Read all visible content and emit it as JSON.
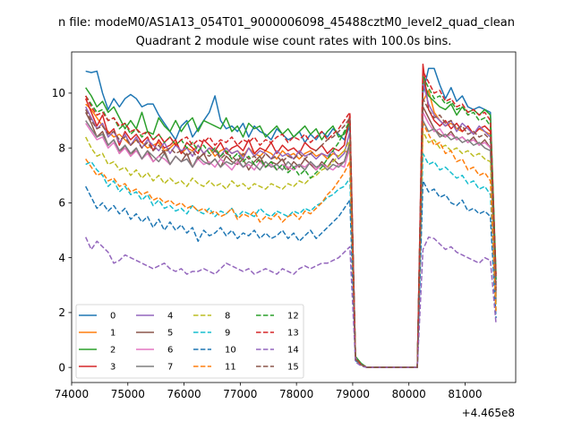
{
  "figure": {
    "suptitle": "n file: modeM0/AS1A13_054T01_9000006098_45488cztM0_level2_quad_clean",
    "offset_text": "+4.465e8"
  },
  "chart_data": {
    "type": "line",
    "title": "Quadrant 2 module wise count rates with 100.0s bins.",
    "xlabel": "",
    "ylabel": "",
    "x_offset": 446500000,
    "xlim": [
      74000,
      81900
    ],
    "ylim": [
      -0.55,
      11.5
    ],
    "xticks": [
      74000,
      75000,
      76000,
      77000,
      78000,
      79000,
      80000,
      81000
    ],
    "xtick_labels": [
      "74000",
      "75000",
      "76000",
      "77000",
      "78000",
      "79000",
      "80000",
      "81000"
    ],
    "yticks": [
      0,
      2,
      4,
      6,
      8,
      10
    ],
    "ytick_labels": [
      "0",
      "2",
      "4",
      "6",
      "8",
      "10"
    ],
    "grid": false,
    "legend": {
      "placement": "lower-left",
      "columns": 4
    },
    "segments": [
      {
        "x_start": 74250,
        "x_end": 78950,
        "step": 100
      },
      {
        "x_start": 79050,
        "x_end": 79150,
        "step": 100
      },
      {
        "x_start": 79250,
        "x_end": 80150,
        "step": 100
      },
      {
        "x_start": 80250,
        "x_end": 81450,
        "step": 100
      },
      {
        "x_start": 81550,
        "x_end": 81550,
        "step": 100
      }
    ],
    "series": [
      {
        "name": "0",
        "color": "#1f77b4",
        "dash": "solid",
        "phase1": [
          10.8,
          10.75,
          10.8,
          10.0,
          9.4,
          9.8,
          9.5,
          9.8,
          9.95,
          9.8,
          9.5,
          9.6,
          9.6,
          9.2,
          8.9,
          8.6,
          8.3,
          8.8,
          9.0,
          8.4,
          8.7,
          9.0,
          9.3,
          9.9,
          9.0,
          8.7,
          8.8,
          8.6,
          8.9,
          8.4,
          8.8,
          8.6,
          8.5,
          8.3,
          8.7,
          8.5,
          8.3,
          8.4,
          8.6,
          8.2,
          8.5,
          8.3,
          8.6,
          8.4,
          8.7,
          8.5,
          8.3,
          8.8
        ],
        "transition": [
          0.35,
          0.15
        ],
        "phase2": [
          10.0,
          10.9,
          10.9,
          10.3,
          9.8,
          10.2,
          9.7,
          9.9,
          9.5,
          9.4,
          9.5,
          9.4,
          9.3
        ],
        "end": 3.2
      },
      {
        "name": "1",
        "color": "#ff7f0e",
        "dash": "solid",
        "phase1": [
          9.6,
          9.4,
          9.1,
          8.8,
          8.6,
          8.4,
          8.5,
          8.3,
          8.1,
          8.3,
          8.2,
          8.0,
          8.1,
          8.2,
          7.9,
          8.0,
          8.2,
          7.8,
          8.0,
          7.9,
          8.1,
          7.8,
          8.0,
          7.7,
          7.9,
          8.0,
          7.8,
          7.9,
          7.7,
          8.0,
          7.8,
          7.7,
          7.9,
          7.8,
          7.6,
          7.9,
          7.7,
          7.8,
          7.6,
          7.8,
          7.9,
          7.7,
          7.8,
          7.6,
          7.8,
          7.7,
          7.9,
          7.8
        ],
        "transition": [
          0.3,
          0.1
        ],
        "phase2": [
          9.7,
          10.1,
          9.3,
          9.0,
          8.8,
          8.9,
          8.7,
          8.6,
          8.8,
          8.5,
          8.7,
          8.6,
          8.5
        ],
        "end": 2.7
      },
      {
        "name": "2",
        "color": "#2ca02c",
        "dash": "solid",
        "phase1": [
          10.2,
          9.9,
          9.5,
          9.7,
          9.3,
          9.5,
          9.1,
          8.7,
          9.0,
          8.7,
          9.3,
          8.6,
          8.5,
          9.1,
          8.8,
          8.6,
          9.0,
          8.6,
          8.9,
          9.1,
          8.6,
          9.0,
          8.9,
          8.8,
          8.7,
          9.1,
          8.6,
          8.8,
          8.4,
          8.9,
          8.7,
          8.8,
          8.4,
          8.6,
          8.8,
          8.5,
          8.7,
          8.4,
          8.6,
          8.8,
          8.5,
          8.7,
          8.3,
          8.6,
          8.8,
          8.4,
          8.5,
          8.9
        ],
        "transition": [
          0.4,
          0.15
        ],
        "phase2": [
          10.5,
          9.9,
          9.7,
          9.5,
          9.4,
          9.6,
          9.2,
          9.5,
          9.3,
          9.4,
          9.2,
          9.4,
          9.2
        ],
        "end": 3.4
      },
      {
        "name": "3",
        "color": "#d62728",
        "dash": "solid",
        "phase1": [
          9.8,
          9.3,
          8.8,
          9.2,
          8.5,
          8.7,
          8.1,
          8.6,
          8.3,
          8.5,
          8.2,
          8.4,
          7.9,
          8.3,
          8.0,
          8.1,
          8.3,
          7.8,
          8.2,
          8.0,
          7.8,
          8.3,
          8.1,
          7.9,
          8.2,
          7.8,
          8.0,
          8.1,
          7.9,
          8.3,
          7.8,
          8.0,
          7.9,
          8.2,
          7.8,
          8.1,
          7.9,
          8.0,
          7.8,
          8.2,
          8.0,
          7.9,
          8.1,
          7.8,
          8.0,
          7.9,
          8.1,
          9.2
        ],
        "transition": [
          0.3,
          0.1
        ],
        "phase2": [
          11.05,
          9.4,
          9.0,
          8.8,
          9.0,
          8.7,
          8.9,
          8.6,
          8.8,
          8.5,
          8.7,
          8.8,
          8.6
        ],
        "end": 2.9
      },
      {
        "name": "4",
        "color": "#9467bd",
        "dash": "solid",
        "phase1": [
          9.5,
          9.1,
          8.7,
          8.9,
          8.4,
          8.6,
          8.2,
          8.5,
          8.1,
          8.4,
          8.0,
          8.3,
          8.1,
          7.9,
          8.2,
          7.8,
          8.1,
          7.9,
          8.0,
          7.7,
          8.1,
          7.8,
          8.0,
          7.9,
          7.7,
          8.0,
          7.8,
          7.9,
          7.6,
          8.0,
          7.7,
          7.9,
          7.8,
          7.6,
          7.9,
          7.7,
          7.8,
          7.6,
          7.9,
          7.7,
          7.8,
          7.6,
          7.8,
          7.7,
          7.9,
          7.6,
          7.8,
          8.6
        ],
        "transition": [
          0.35,
          0.1
        ],
        "phase2": [
          10.4,
          9.6,
          9.2,
          9.0,
          8.8,
          9.0,
          8.6,
          8.9,
          8.7,
          8.5,
          8.8,
          8.6,
          8.4
        ],
        "end": 3.0
      },
      {
        "name": "5",
        "color": "#8c564b",
        "dash": "solid",
        "phase1": [
          9.3,
          8.9,
          8.4,
          8.6,
          8.1,
          8.3,
          7.8,
          8.1,
          7.7,
          8.0,
          7.6,
          7.9,
          7.5,
          7.7,
          7.9,
          7.4,
          7.7,
          7.5,
          7.8,
          7.3,
          7.6,
          7.8,
          7.4,
          7.6,
          7.3,
          7.7,
          7.5,
          7.4,
          7.6,
          7.2,
          7.5,
          7.7,
          7.3,
          7.5,
          7.4,
          7.6,
          7.2,
          7.5,
          7.3,
          7.6,
          7.4,
          7.2,
          7.5,
          7.3,
          7.6,
          7.4,
          7.5,
          8.2
        ],
        "transition": [
          0.3,
          0.1
        ],
        "phase2": [
          9.5,
          9.1,
          8.7,
          8.5,
          8.4,
          8.6,
          8.3,
          8.4,
          8.2,
          8.4,
          8.1,
          8.3,
          8.0
        ],
        "end": 2.6
      },
      {
        "name": "6",
        "color": "#e377c2",
        "dash": "solid",
        "phase1": [
          8.9,
          8.6,
          8.3,
          8.4,
          8.0,
          8.2,
          7.8,
          8.0,
          7.7,
          7.9,
          7.6,
          7.8,
          7.5,
          7.7,
          7.6,
          7.4,
          7.7,
          7.5,
          7.6,
          7.3,
          7.6,
          7.4,
          7.5,
          7.3,
          7.6,
          7.4,
          7.2,
          7.5,
          7.3,
          7.4,
          7.2,
          7.5,
          7.3,
          7.4,
          7.2,
          7.4,
          7.3,
          7.2,
          7.4,
          7.3,
          7.5,
          7.2,
          7.4,
          7.3,
          7.2,
          7.4,
          7.3,
          8.0
        ],
        "transition": [
          0.3,
          0.1
        ],
        "phase2": [
          9.3,
          8.9,
          8.6,
          8.7,
          8.4,
          8.5,
          8.3,
          8.4,
          8.2,
          8.3,
          8.1,
          8.2,
          8.0
        ],
        "end": 2.5
      },
      {
        "name": "7",
        "color": "#7f7f7f",
        "dash": "solid",
        "phase1": [
          9.0,
          8.7,
          8.4,
          8.5,
          8.1,
          8.3,
          7.9,
          8.1,
          7.8,
          8.0,
          7.6,
          7.9,
          7.7,
          7.5,
          7.8,
          7.4,
          7.7,
          7.5,
          7.6,
          7.3,
          7.7,
          7.5,
          7.4,
          7.6,
          7.3,
          7.5,
          7.4,
          7.6,
          7.3,
          7.5,
          7.4,
          7.2,
          7.5,
          7.3,
          7.4,
          7.2,
          7.5,
          7.3,
          7.4,
          7.2,
          7.5,
          7.3,
          7.4,
          7.2,
          7.4,
          7.3,
          7.5,
          8.1
        ],
        "transition": [
          0.3,
          0.1
        ],
        "phase2": [
          9.0,
          8.6,
          8.7,
          8.4,
          8.5,
          8.3,
          8.4,
          8.2,
          8.3,
          8.1,
          8.2,
          8.0,
          7.9
        ],
        "end": 2.4
      },
      {
        "name": "8",
        "color": "#bcbd22",
        "dash": "dashed",
        "phase1": [
          8.4,
          8.0,
          7.7,
          7.8,
          7.4,
          7.5,
          7.2,
          7.3,
          7.0,
          7.2,
          6.9,
          7.1,
          6.8,
          7.0,
          6.7,
          6.9,
          6.7,
          6.8,
          6.6,
          6.9,
          6.7,
          6.6,
          6.8,
          6.6,
          6.7,
          6.5,
          6.8,
          6.6,
          6.7,
          6.5,
          6.7,
          6.6,
          6.5,
          6.7,
          6.6,
          6.5,
          6.7,
          6.6,
          6.8,
          6.7,
          6.9,
          7.0,
          7.2,
          7.3,
          7.5,
          7.7,
          7.9,
          8.3
        ],
        "transition": [
          0.3,
          0.1
        ],
        "phase2": [
          8.6,
          8.2,
          8.3,
          8.0,
          8.1,
          7.9,
          8.0,
          7.8,
          7.9,
          7.7,
          7.8,
          7.6,
          7.5
        ],
        "end": 2.3
      },
      {
        "name": "9",
        "color": "#17becf",
        "dash": "dashed",
        "phase1": [
          7.4,
          7.5,
          7.2,
          7.0,
          6.6,
          6.8,
          6.4,
          6.6,
          6.3,
          6.4,
          6.1,
          6.3,
          5.9,
          6.1,
          5.8,
          5.9,
          5.7,
          5.8,
          5.6,
          5.9,
          5.7,
          5.6,
          5.8,
          5.5,
          5.7,
          5.6,
          5.8,
          5.5,
          5.7,
          5.6,
          5.5,
          5.8,
          5.6,
          5.5,
          5.7,
          5.6,
          5.5,
          5.7,
          5.6,
          5.8,
          5.7,
          5.9,
          6.0,
          6.2,
          6.3,
          6.5,
          6.6,
          6.9
        ],
        "transition": [
          0.25,
          0.1
        ],
        "phase2": [
          7.8,
          7.4,
          7.5,
          7.2,
          7.3,
          7.1,
          6.9,
          7.0,
          6.7,
          6.8,
          6.5,
          6.6,
          6.3
        ],
        "end": 2.1
      },
      {
        "name": "10",
        "color": "#1f77b4",
        "dash": "dashed",
        "phase1": [
          6.6,
          6.2,
          5.8,
          6.0,
          5.7,
          5.9,
          5.6,
          5.8,
          5.4,
          5.6,
          5.3,
          5.5,
          5.1,
          5.4,
          5.0,
          5.3,
          5.0,
          5.2,
          4.9,
          5.1,
          4.6,
          5.0,
          4.8,
          4.9,
          5.1,
          4.8,
          5.0,
          4.7,
          4.9,
          4.8,
          5.0,
          4.7,
          4.9,
          4.7,
          4.8,
          5.0,
          4.7,
          4.9,
          4.6,
          4.8,
          5.0,
          4.7,
          4.9,
          5.1,
          5.3,
          5.5,
          5.8,
          6.1
        ],
        "transition": [
          0.25,
          0.1
        ],
        "phase2": [
          6.8,
          6.4,
          6.5,
          6.2,
          6.3,
          6.0,
          5.9,
          6.1,
          5.7,
          5.8,
          5.6,
          5.7,
          5.5
        ],
        "end": 1.8
      },
      {
        "name": "11",
        "color": "#ff7f0e",
        "dash": "dashed",
        "phase1": [
          7.6,
          7.3,
          7.0,
          7.1,
          6.8,
          6.9,
          6.6,
          6.7,
          6.4,
          6.5,
          6.3,
          6.4,
          6.1,
          6.2,
          6.0,
          6.1,
          5.9,
          6.0,
          5.8,
          5.9,
          5.7,
          5.8,
          5.6,
          5.7,
          5.5,
          5.6,
          5.8,
          5.4,
          5.6,
          5.5,
          5.7,
          5.3,
          5.5,
          5.4,
          5.6,
          5.3,
          5.5,
          5.6,
          5.4,
          5.7,
          5.6,
          5.8,
          6.0,
          6.3,
          6.5,
          6.8,
          7.1,
          7.5
        ],
        "transition": [
          0.3,
          0.1
        ],
        "phase2": [
          8.9,
          8.5,
          8.1,
          8.2,
          7.8,
          7.9,
          7.5,
          7.6,
          7.2,
          7.3,
          7.0,
          7.1,
          6.8
        ],
        "end": 2.0
      },
      {
        "name": "12",
        "color": "#2ca02c",
        "dash": "dashed",
        "phase1": [
          9.9,
          9.6,
          9.3,
          9.4,
          9.0,
          9.1,
          8.7,
          8.9,
          8.5,
          8.7,
          8.4,
          8.6,
          8.3,
          8.5,
          8.2,
          8.4,
          8.1,
          8.3,
          8.0,
          8.2,
          7.9,
          8.1,
          7.8,
          8.0,
          7.7,
          7.9,
          7.6,
          7.8,
          7.5,
          7.7,
          7.4,
          7.6,
          7.3,
          7.5,
          7.2,
          7.4,
          7.1,
          7.3,
          7.0,
          7.2,
          6.9,
          7.1,
          7.3,
          7.6,
          7.9,
          8.2,
          8.6,
          9.0
        ],
        "transition": [
          0.35,
          0.1
        ],
        "phase2": [
          10.6,
          10.2,
          9.8,
          9.9,
          9.6,
          9.7,
          9.4,
          9.5,
          9.2,
          9.3,
          9.0,
          9.1,
          8.8
        ],
        "end": 3.1
      },
      {
        "name": "13",
        "color": "#d62728",
        "dash": "dashed",
        "phase1": [
          9.9,
          9.5,
          9.2,
          9.3,
          9.0,
          9.1,
          8.8,
          8.9,
          8.6,
          8.7,
          8.5,
          8.6,
          8.3,
          8.5,
          8.2,
          8.4,
          8.1,
          8.3,
          8.4,
          8.1,
          8.3,
          8.2,
          8.4,
          8.1,
          8.3,
          8.2,
          8.4,
          8.1,
          8.3,
          8.2,
          8.4,
          8.1,
          8.3,
          8.2,
          8.4,
          8.5,
          8.2,
          8.4,
          8.3,
          8.5,
          8.2,
          8.4,
          8.6,
          8.3,
          8.5,
          8.7,
          9.0,
          9.3
        ],
        "transition": [
          0.35,
          0.1
        ],
        "phase2": [
          10.8,
          10.4,
          10.0,
          10.1,
          9.7,
          9.8,
          9.5,
          9.6,
          9.3,
          9.4,
          9.2,
          9.3,
          9.0
        ],
        "end": 3.3
      },
      {
        "name": "14",
        "color": "#9467bd",
        "dash": "dashed",
        "phase1": [
          4.75,
          4.3,
          4.6,
          4.4,
          4.2,
          3.8,
          3.9,
          4.1,
          4.0,
          3.9,
          3.8,
          3.7,
          3.6,
          3.7,
          3.8,
          3.6,
          3.5,
          3.6,
          3.4,
          3.5,
          3.5,
          3.6,
          3.5,
          3.4,
          3.6,
          3.8,
          3.7,
          3.6,
          3.5,
          3.6,
          3.4,
          3.5,
          3.6,
          3.5,
          3.4,
          3.6,
          3.5,
          3.4,
          3.6,
          3.7,
          3.6,
          3.7,
          3.8,
          3.8,
          3.9,
          4.0,
          4.2,
          4.4
        ],
        "transition": [
          0.2,
          0.05
        ],
        "phase2": [
          4.3,
          4.75,
          4.7,
          4.5,
          4.3,
          4.4,
          4.2,
          4.1,
          4.0,
          3.9,
          3.8,
          4.0,
          3.9
        ],
        "end": 1.6
      },
      {
        "name": "15",
        "color": "#8c564b",
        "dash": "dashed",
        "phase1": [
          9.4,
          9.0,
          8.7,
          8.8,
          8.5,
          8.6,
          8.3,
          8.4,
          8.1,
          8.3,
          8.0,
          8.2,
          7.9,
          8.1,
          7.8,
          8.0,
          7.8,
          7.9,
          7.7,
          7.9,
          7.6,
          7.8,
          7.7,
          7.9,
          7.6,
          7.8,
          7.7,
          7.5,
          7.8,
          7.6,
          7.7,
          7.5,
          7.8,
          7.6,
          7.7,
          7.5,
          7.7,
          7.6,
          7.8,
          7.6,
          7.8,
          7.9,
          8.1,
          8.3,
          8.4,
          8.6,
          8.8,
          9.1
        ],
        "transition": [
          0.3,
          0.1
        ],
        "phase2": [
          9.8,
          9.4,
          9.1,
          9.2,
          8.9,
          9.0,
          8.7,
          8.8,
          8.5,
          8.6,
          8.4,
          8.5,
          8.3
        ],
        "end": 2.8
      }
    ]
  }
}
